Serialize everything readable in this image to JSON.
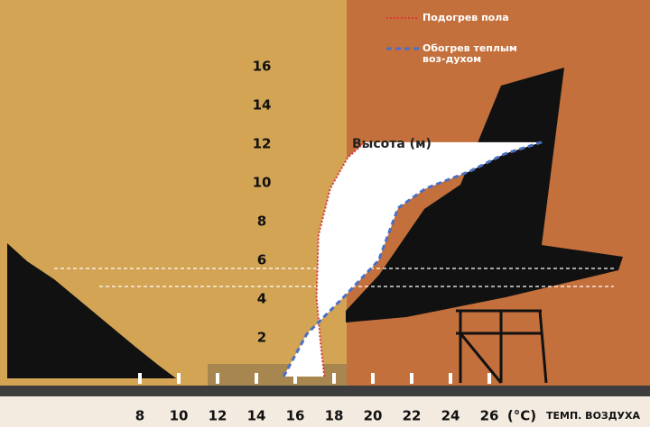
{
  "chart_data": {
    "type": "line",
    "y_label": "Высота (м)",
    "x_unit": "(°C)",
    "x_label": "ТЕМП. ВОЗДУХА",
    "xlim": [
      6,
      30
    ],
    "ylim": [
      0,
      18
    ],
    "xticks": [
      8,
      10,
      12,
      14,
      16,
      18,
      20,
      22,
      24,
      26
    ],
    "yticks": [
      2,
      4,
      6,
      8,
      10,
      12,
      14,
      16
    ],
    "grid": false,
    "legend": "top-right",
    "series": [
      {
        "name": "Подогрев пола",
        "color": "#d9363e",
        "style": "dotted",
        "x": [
          17.5,
          17.3,
          17.1,
          17.2,
          17.8,
          18.7,
          19.6
        ],
        "values": [
          0,
          1.8,
          4.1,
          7.3,
          9.7,
          11.3,
          12.1
        ]
      },
      {
        "name": "Обогрев теплым воз-духом",
        "color": "#4a6fc4",
        "style": "dashed",
        "x": [
          15.4,
          16.6,
          18.5,
          20.3,
          21.3,
          22.7,
          25,
          26.8,
          28.7
        ],
        "values": [
          0,
          2.2,
          4.1,
          6.0,
          8.7,
          9.7,
          10.6,
          11.5,
          12.1
        ]
      }
    ]
  }
}
